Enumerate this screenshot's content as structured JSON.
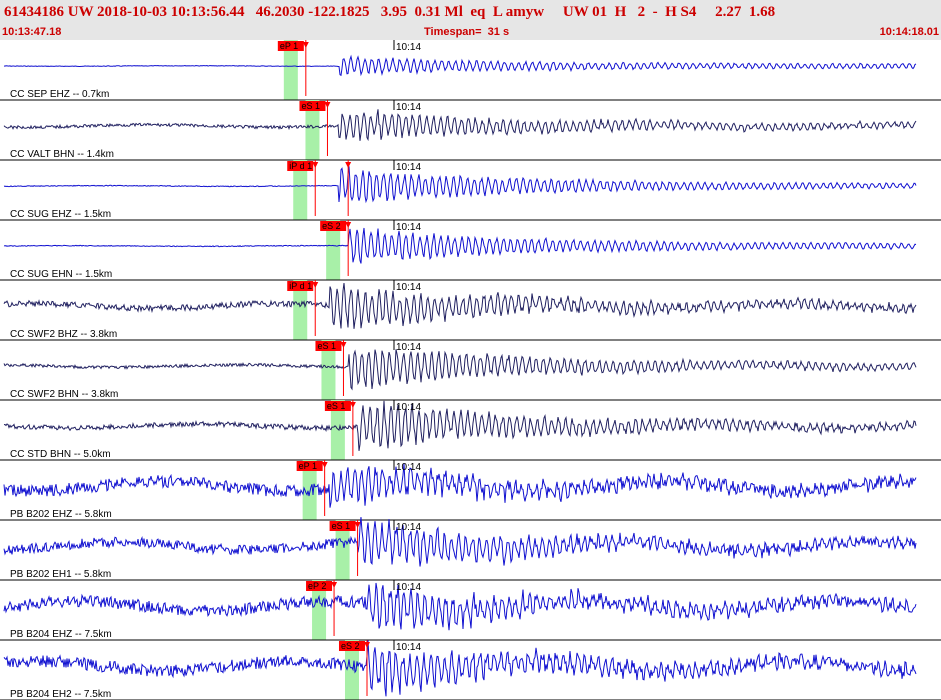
{
  "header": {
    "title": "61434186 UW 2018-10-03 10:13:56.44   46.2030 -122.1825   3.95  0.31 Ml  eq  L amyw     UW 01  H   2  -  H S4     2.27  1.68",
    "start_time": "10:13:47.18",
    "timespan": "Timespan=  31 s",
    "end_time": "10:14:18.01"
  },
  "colors": {
    "trace_blue": "#1010d0",
    "trace_navy": "#202060",
    "pick_red": "#ff0000",
    "window_green": "#a8f0a8"
  },
  "traces": [
    {
      "label": "CC SEP EHZ -- 0.7km",
      "time_tick": "10:14",
      "color": "blue",
      "amp": 6,
      "noise": 0.6,
      "arrival": 0.36,
      "picks": [
        {
          "label": "eP 1",
          "pos": 0.325
        }
      ]
    },
    {
      "label": "CC VALT BHN -- 1.4km",
      "time_tick": "10:14",
      "color": "navy",
      "amp": 12,
      "noise": 3,
      "arrival": 0.36,
      "picks": [
        {
          "label": "eS 1",
          "pos": 0.348
        }
      ]
    },
    {
      "label": "CC SUG EHZ -- 1.5km",
      "time_tick": "10:14",
      "color": "blue",
      "amp": 14,
      "noise": 0.8,
      "arrival": 0.36,
      "picks": [
        {
          "label": "iP d 1",
          "pos": 0.335
        },
        {
          "label": "",
          "pos": 0.37
        }
      ]
    },
    {
      "label": "CC SUG EHN -- 1.5km",
      "time_tick": "10:14",
      "color": "blue",
      "amp": 14,
      "noise": 0.8,
      "arrival": 0.37,
      "picks": [
        {
          "label": "eS 2",
          "pos": 0.37
        }
      ]
    },
    {
      "label": "CC SWF2 BHZ -- 3.8km",
      "time_tick": "10:14",
      "color": "navy",
      "amp": 18,
      "noise": 6,
      "arrival": 0.35,
      "picks": [
        {
          "label": "iP d 1",
          "pos": 0.335
        }
      ]
    },
    {
      "label": "CC SWF2 BHN -- 3.8km",
      "time_tick": "10:14",
      "color": "navy",
      "amp": 18,
      "noise": 3,
      "arrival": 0.37,
      "picks": [
        {
          "label": "eS 1",
          "pos": 0.365
        }
      ]
    },
    {
      "label": "CC STD BHN -- 5.0km",
      "time_tick": "10:14",
      "color": "navy",
      "amp": 20,
      "noise": 5,
      "arrival": 0.38,
      "picks": [
        {
          "label": "eS 1",
          "pos": 0.375
        }
      ]
    },
    {
      "label": "PB B202 EHZ -- 5.8km",
      "time_tick": "10:14",
      "color": "blue",
      "amp": 14,
      "noise": 12,
      "arrival": 0.35,
      "picks": [
        {
          "label": "eP 1",
          "pos": 0.345
        }
      ]
    },
    {
      "label": "PB B202 EH1 -- 5.8km",
      "time_tick": "10:14",
      "color": "blue",
      "amp": 18,
      "noise": 10,
      "arrival": 0.38,
      "picks": [
        {
          "label": "eS 1",
          "pos": 0.38
        }
      ]
    },
    {
      "label": "PB B204 EHZ -- 7.5km",
      "time_tick": "10:14",
      "color": "blue",
      "amp": 18,
      "noise": 12,
      "arrival": 0.39,
      "picks": [
        {
          "label": "eP 2",
          "pos": 0.355
        }
      ]
    },
    {
      "label": "PB B204 EH2 -- 7.5km",
      "time_tick": "10:14",
      "color": "blue",
      "amp": 18,
      "noise": 12,
      "arrival": 0.39,
      "picks": [
        {
          "label": "eS 2",
          "pos": 0.39
        }
      ]
    }
  ]
}
